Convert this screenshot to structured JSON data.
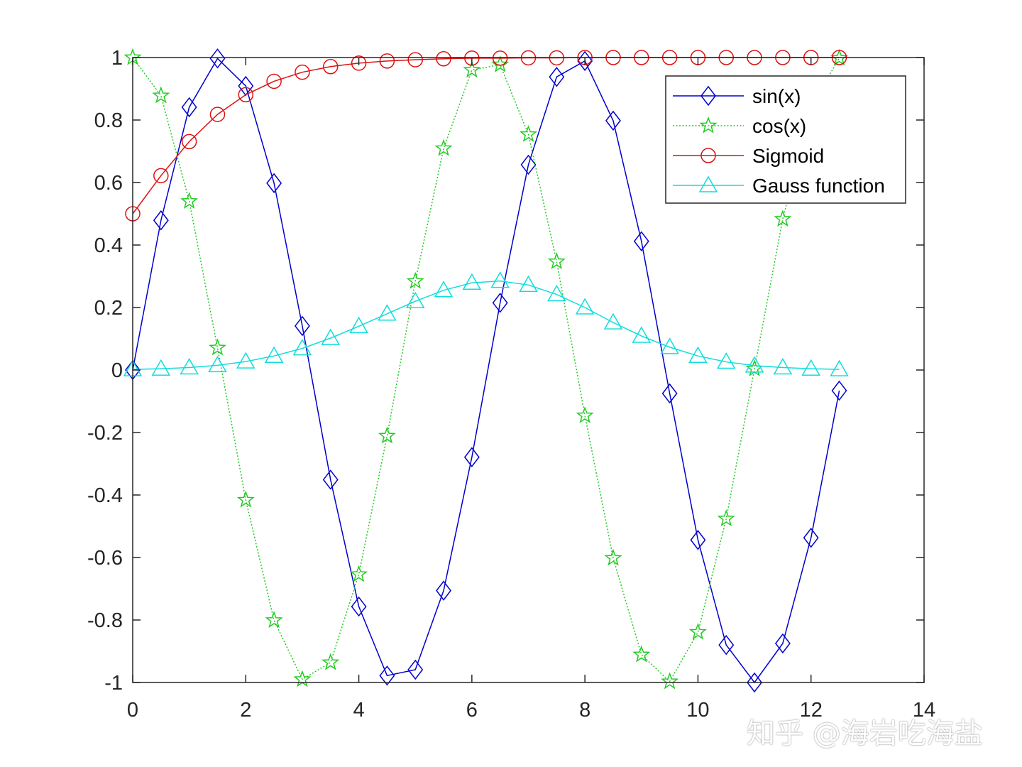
{
  "chart_data": {
    "type": "line",
    "title": "",
    "xlabel": "",
    "ylabel": "",
    "xlim": [
      0,
      14
    ],
    "ylim": [
      -1,
      1
    ],
    "x_ticks": [
      0,
      2,
      4,
      6,
      8,
      10,
      12,
      14
    ],
    "y_ticks": [
      -1,
      -0.8,
      -0.6,
      -0.4,
      -0.2,
      0,
      0.2,
      0.4,
      0.6,
      0.8,
      1
    ],
    "x_tick_labels": [
      "0",
      "2",
      "4",
      "6",
      "8",
      "10",
      "12",
      "14"
    ],
    "y_tick_labels": [
      "-1",
      "-0.8",
      "-0.6",
      "-0.4",
      "-0.2",
      "0",
      "0.2",
      "0.4",
      "0.6",
      "0.8",
      "1"
    ],
    "grid": false,
    "legend_position": "top-right",
    "x": [
      0,
      0.5,
      1,
      1.5,
      2,
      2.5,
      3,
      3.5,
      4,
      4.5,
      5,
      5.5,
      6,
      6.5,
      7,
      7.5,
      8,
      8.5,
      9,
      9.5,
      10,
      10.5,
      11,
      11.5,
      12,
      12.5
    ],
    "series": [
      {
        "name": "sin(x)",
        "color": "#0000cd",
        "marker": "diamond",
        "line_style": "solid",
        "values": [
          0,
          0.479,
          0.841,
          0.997,
          0.909,
          0.598,
          0.141,
          -0.351,
          -0.757,
          -0.978,
          -0.959,
          -0.706,
          -0.279,
          0.215,
          0.657,
          0.938,
          0.989,
          0.798,
          0.412,
          -0.075,
          -0.544,
          -0.88,
          -1.0,
          -0.875,
          -0.537,
          -0.066
        ]
      },
      {
        "name": "cos(x)",
        "color": "#22cc22",
        "marker": "star",
        "line_style": "dotted",
        "values": [
          1,
          0.878,
          0.54,
          0.071,
          -0.416,
          -0.801,
          -0.99,
          -0.936,
          -0.654,
          -0.211,
          0.284,
          0.709,
          0.96,
          0.977,
          0.754,
          0.347,
          -0.146,
          -0.602,
          -0.911,
          -0.997,
          -0.839,
          -0.476,
          0.004,
          0.483,
          0.844,
          0.998
        ]
      },
      {
        "name": "Sigmoid",
        "color": "#dd1111",
        "marker": "circle",
        "line_style": "solid",
        "values": [
          0.5,
          0.622,
          0.731,
          0.818,
          0.881,
          0.924,
          0.953,
          0.971,
          0.982,
          0.989,
          0.993,
          0.996,
          0.998,
          0.998,
          0.999,
          0.999,
          1,
          1,
          1,
          1,
          1,
          1,
          1,
          1,
          1,
          1
        ]
      },
      {
        "name": "Gauss function",
        "color": "#11dddd",
        "marker": "triangle",
        "line_style": "solid",
        "values": [
          0.002,
          0.004,
          0.008,
          0.015,
          0.027,
          0.045,
          0.069,
          0.102,
          0.14,
          0.18,
          0.22,
          0.255,
          0.279,
          0.285,
          0.272,
          0.242,
          0.2,
          0.152,
          0.109,
          0.073,
          0.045,
          0.026,
          0.014,
          0.008,
          0.004,
          0.002
        ]
      }
    ]
  },
  "watermark": "知乎 @海岩吃海盐"
}
